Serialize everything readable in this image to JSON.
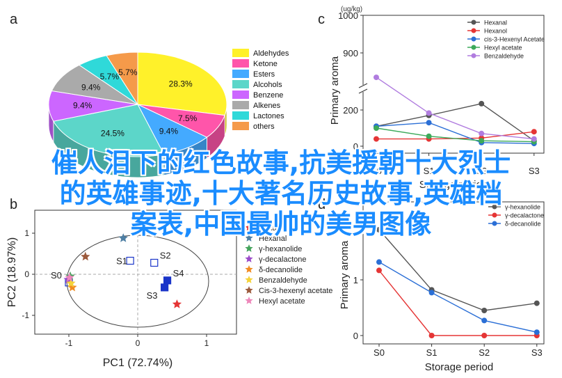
{
  "overlay": {
    "line1": "催人泪下的红色故事,抗美援朝十大烈士",
    "line2": "的英雄事迹,十大著名历史故事,英雄档",
    "line3": "案表,中国最帅的美男图像"
  },
  "panels": {
    "a": "a",
    "b": "b",
    "c": "c",
    "d": "d"
  },
  "chart_data": [
    {
      "panel": "a",
      "type": "pie",
      "title": "",
      "categories": [
        "Aldehydes",
        "Ketone",
        "Esters",
        "Alcohols",
        "Benzene",
        "Alkenes",
        "Lactones",
        "others"
      ],
      "values": [
        28.3,
        7.5,
        9.4,
        24.5,
        9.4,
        9.4,
        5.7,
        5.7
      ],
      "labels": [
        "28.3%",
        "7.5%",
        "9.4%",
        "24.5%",
        "9.4%",
        "9.4%",
        "5.7%",
        "5.7%"
      ],
      "colors": [
        "#fff12a",
        "#ff55aa",
        "#44aaff",
        "#5cd6c9",
        "#cc66ff",
        "#aaaaaa",
        "#2fd9d9",
        "#f59a4a"
      ],
      "legend": "right"
    },
    {
      "panel": "b",
      "type": "scatter",
      "xlabel": "PC1 (72.74%)",
      "ylabel": "PC2 (18.97%)",
      "xlim": [
        -1.0,
        1.0
      ],
      "ylim": [
        -1.0,
        1.0
      ],
      "xticks": [
        "-1",
        "0",
        "1"
      ],
      "yticks": [
        "1",
        "0",
        "-1"
      ],
      "legend": "right",
      "samples": [
        {
          "label": "S0",
          "x": -1.0,
          "y": -0.2
        },
        {
          "label": "S1",
          "x": -0.11,
          "y": 0.33
        },
        {
          "label": "S2",
          "x": 0.24,
          "y": 0.28
        },
        {
          "label": "S3",
          "x": 0.39,
          "y": -0.32
        },
        {
          "label": "S4",
          "x": 0.43,
          "y": -0.15
        }
      ],
      "series": [
        {
          "name": "Hexanol",
          "color": "#e53535",
          "x": 0.57,
          "y": -0.73
        },
        {
          "name": "Hexanal",
          "color": "#4e7fa4",
          "x": -0.21,
          "y": 0.88
        },
        {
          "name": "γ-hexanolide",
          "color": "#43a35b",
          "x": -0.98,
          "y": -0.05
        },
        {
          "name": "γ-decalactone",
          "color": "#9b4cc9",
          "x": -1.01,
          "y": -0.13
        },
        {
          "name": "δ-decanolide",
          "color": "#f18c22",
          "x": -0.95,
          "y": -0.32
        },
        {
          "name": "Benzaldehyde",
          "color": "#f5d23a",
          "x": -0.97,
          "y": -0.22
        },
        {
          "name": "Cis-3-hexenyl acetate",
          "color": "#9c5a3c",
          "x": -0.76,
          "y": 0.43
        },
        {
          "name": "Hexyl acetate",
          "color": "#ee88bb",
          "x": -0.99,
          "y": -0.08
        }
      ]
    },
    {
      "panel": "c",
      "type": "line",
      "title": "",
      "unit": "(ug/kg)",
      "xlabel": "Storage period",
      "ylabel": "Primary aroma",
      "categories": [
        "S0",
        "S1",
        "S2",
        "S3"
      ],
      "yticks": [
        "0",
        "200",
        "900",
        "1000"
      ],
      "ylim_lower": [
        0,
        260
      ],
      "ylim_upper": [
        850,
        1000
      ],
      "legend": "top-right",
      "series": [
        {
          "name": "Hexanal",
          "color": "#555555",
          "values": [
            110,
            170,
            235,
            30
          ]
        },
        {
          "name": "Hexanol",
          "color": "#e53535",
          "values": [
            40,
            40,
            45,
            80
          ]
        },
        {
          "name": "cis-3-Hexenyl Acetate",
          "color": "#2b6fd6",
          "values": [
            110,
            130,
            20,
            15
          ]
        },
        {
          "name": "Hexyl acetate",
          "color": "#3caa5a",
          "values": [
            100,
            55,
            30,
            25
          ]
        },
        {
          "name": "Benzaldehyde",
          "color": "#b07cdf",
          "values": [
            835,
            740,
            70,
            40
          ]
        }
      ]
    },
    {
      "panel": "d",
      "type": "line",
      "xlabel": "Storage period",
      "ylabel": "Primary aroma",
      "categories": [
        "S0",
        "S1",
        "S2",
        "S3"
      ],
      "yticks": [
        "0",
        "1"
      ],
      "ylim": [
        0,
        2.2
      ],
      "legend": "top-right",
      "series": [
        {
          "name": "γ-hexanolide",
          "color": "#555555",
          "values": [
            1.9,
            0.82,
            0.45,
            0.58
          ]
        },
        {
          "name": "γ-decalactone",
          "color": "#e53535",
          "values": [
            1.17,
            0.0,
            0.0,
            0.0
          ]
        },
        {
          "name": "δ-decanolide",
          "color": "#2b6fd6",
          "values": [
            1.32,
            0.77,
            0.27,
            0.06
          ]
        }
      ]
    }
  ]
}
